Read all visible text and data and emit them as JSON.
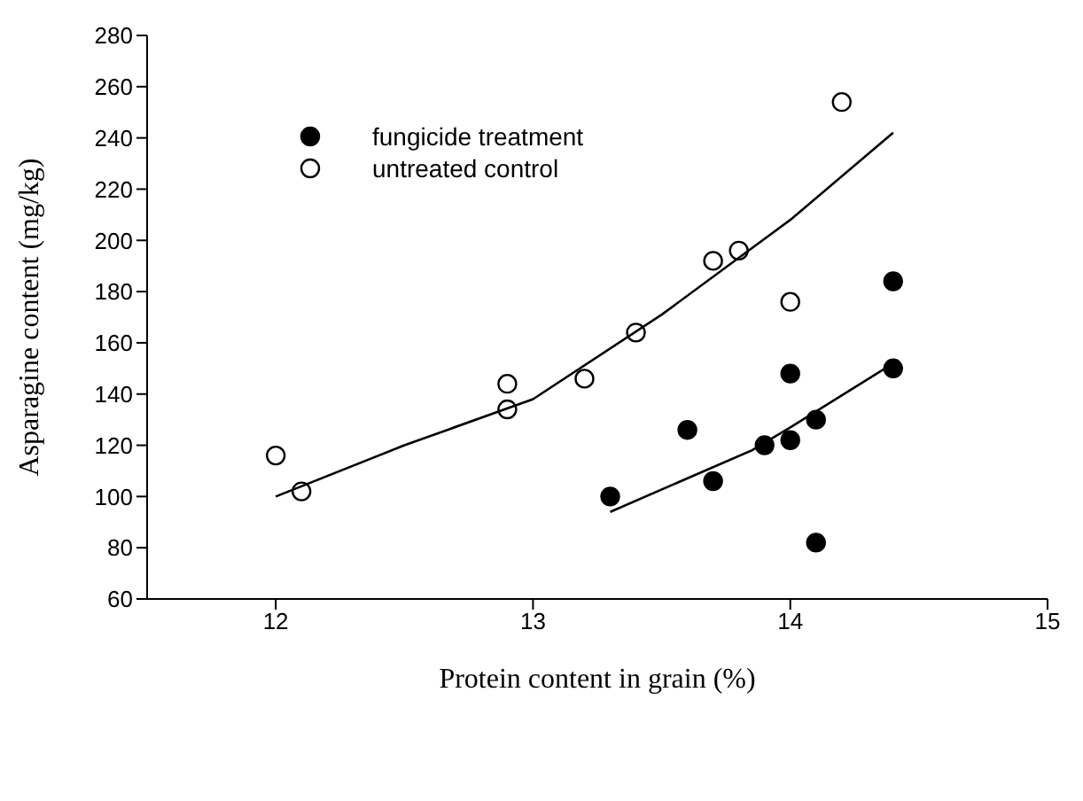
{
  "chart_data": {
    "type": "scatter",
    "xlabel": "Protein content in grain (%)",
    "ylabel": "Asparagine content (mg/kg)",
    "xlim": [
      11.5,
      15
    ],
    "xticks": [
      12,
      13,
      14,
      15
    ],
    "ylim": [
      60,
      280
    ],
    "yticks": [
      60,
      80,
      100,
      120,
      140,
      160,
      180,
      200,
      220,
      240,
      260,
      280
    ],
    "grid": false,
    "legend": "top left",
    "series": [
      {
        "name": "fungicide treatment",
        "marker": "circle",
        "color": "#000000",
        "x": [
          13.3,
          13.6,
          13.7,
          13.9,
          14.0,
          14.0,
          14.1,
          14.1,
          14.4,
          14.4
        ],
        "values": [
          100,
          126,
          106,
          120,
          148,
          122,
          130,
          82,
          184,
          150
        ]
      },
      {
        "name": "untreated control",
        "marker": "circle",
        "color": "#ffffff",
        "x": [
          12.0,
          12.1,
          12.9,
          12.9,
          13.2,
          13.4,
          13.7,
          13.8,
          14.0,
          14.2
        ],
        "values": [
          116,
          102,
          144,
          134,
          146,
          164,
          192,
          196,
          176,
          254
        ]
      },
      {
        "type": "line",
        "marker": "none",
        "color": "#000000",
        "x": [
          12.0,
          12.5,
          13.0,
          13.5,
          14.0,
          14.4
        ],
        "values": [
          100,
          120,
          138,
          171,
          208,
          242
        ]
      },
      {
        "type": "line",
        "marker": "none",
        "color": "#000000",
        "x": [
          13.3,
          13.85,
          14.0,
          14.4
        ],
        "values": [
          94,
          118,
          127,
          152
        ]
      }
    ]
  }
}
